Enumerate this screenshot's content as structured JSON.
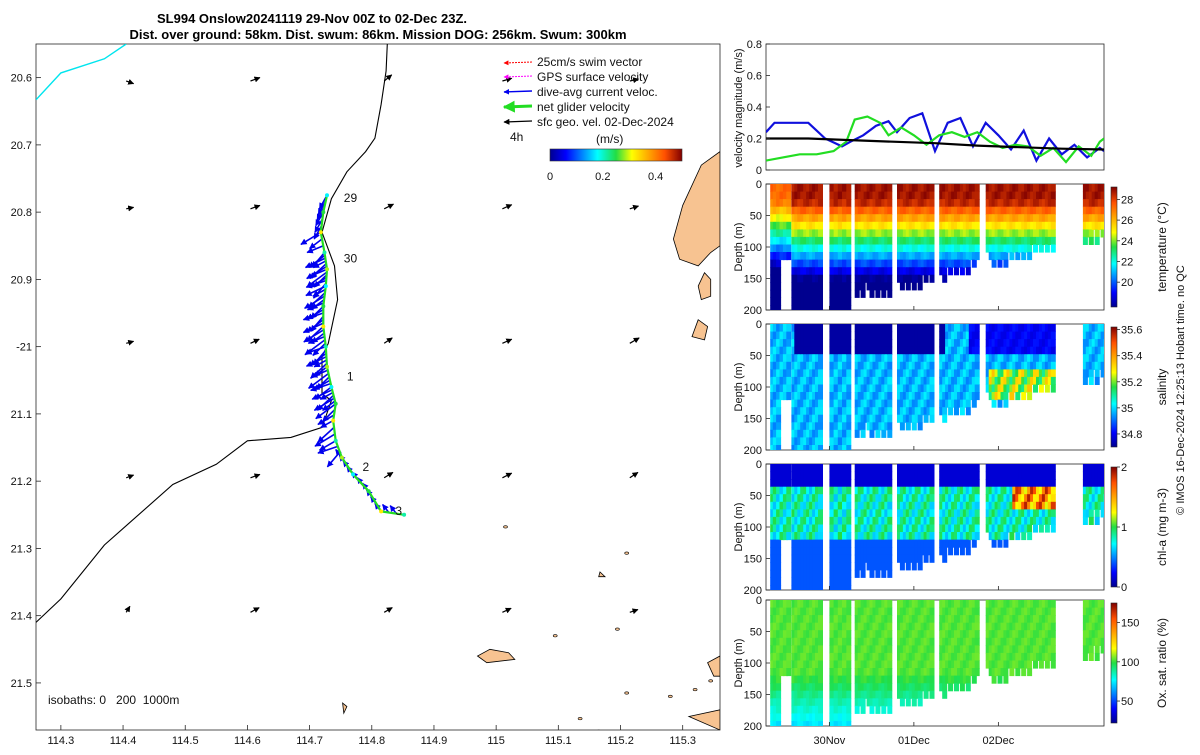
{
  "title_lines": [
    "SL994 Onslow20241119 29-Nov 00Z to 02-Dec 23Z.",
    "Dist. over ground: 58km. Dist. swum: 86km. Mission DOG: 256km. Swum: 300km"
  ],
  "side_note": "© IMOS 16-Dec-2024 12:25:13 Hobart time. no QC",
  "colors": {
    "coast": "#000000",
    "land": "#f7c391",
    "cyan": "#00e5ee",
    "swim": "#ff0000",
    "gps": "#ff00ff",
    "dive": "#0000ee",
    "net": "#22dd22",
    "sfc": "#000000",
    "vel_blue": "#1010dd",
    "vel_green": "#22dd22",
    "vel_black": "#000000"
  },
  "chart_data": [
    {
      "type": "map",
      "name": "glider-track-map",
      "xlim": [
        114.26,
        115.36
      ],
      "ylim": [
        -21.57,
        -20.55
      ],
      "xticks": [
        114.3,
        114.4,
        114.5,
        114.6,
        114.7,
        114.8,
        114.9,
        115,
        115.1,
        115.2,
        115.3
      ],
      "xtick_labels": [
        "114.3",
        "114.4",
        "114.5",
        "114.6",
        "114.7",
        "114.8",
        "114.9",
        "115",
        "115.1",
        "115.2",
        "115.3"
      ],
      "yticks": [
        -20.6,
        -20.7,
        -20.8,
        -20.9,
        -21,
        -21.1,
        -21.2,
        -21.3,
        -21.4,
        -21.5
      ],
      "ytick_labels": [
        "20.6",
        "20.7",
        "20.8",
        "20.9",
        "-21",
        "21.1",
        "21.2",
        "21.3",
        "21.4",
        "21.5"
      ],
      "legend": {
        "items": [
          {
            "label": "25cm/s swim vector",
            "color_key": "swim"
          },
          {
            "label": "GPS surface velocity",
            "color_key": "gps"
          },
          {
            "label": "dive-avg current veloc.",
            "color_key": "dive"
          },
          {
            "label": "net glider velocity",
            "color_key": "net"
          },
          {
            "label": "sfc geo. vel. 02-Dec-2024",
            "color_key": "sfc"
          }
        ],
        "time_label": "4h",
        "colorbar_title": "(m/s)",
        "colorbar_range": [
          0,
          0.5
        ],
        "colorbar_ticks": [
          0,
          0.2,
          0.4
        ],
        "colorbar_tick_labels": [
          "0",
          "0.2",
          "0.4"
        ]
      },
      "isobaths_label": "isobaths: 0   200  1000m",
      "day_labels": [
        {
          "text": "29",
          "lon": 114.755,
          "lat": -20.785
        },
        {
          "text": "30",
          "lon": 114.755,
          "lat": -20.875
        },
        {
          "text": "1",
          "lon": 114.76,
          "lat": -21.05
        },
        {
          "text": "2",
          "lon": 114.785,
          "lat": -21.185
        },
        {
          "text": "3",
          "lon": 114.838,
          "lat": -21.25
        }
      ],
      "coastline": [
        [
          114.26,
          -21.41
        ],
        [
          114.3,
          -21.375
        ],
        [
          114.37,
          -21.295
        ],
        [
          114.48,
          -21.205
        ],
        [
          114.55,
          -21.175
        ],
        [
          114.6,
          -21.14
        ],
        [
          114.67,
          -21.135
        ],
        [
          114.72,
          -21.12
        ],
        [
          114.735,
          -21.08
        ],
        [
          114.72,
          -21.07
        ],
        [
          114.72,
          -21.015
        ],
        [
          114.73,
          -20.995
        ],
        [
          114.745,
          -20.93
        ],
        [
          114.74,
          -20.88
        ],
        [
          114.72,
          -20.83
        ],
        [
          114.735,
          -20.78
        ],
        [
          114.76,
          -20.74
        ],
        [
          114.79,
          -20.71
        ],
        [
          114.805,
          -20.69
        ],
        [
          114.815,
          -20.64
        ],
        [
          114.823,
          -20.59
        ],
        [
          114.825,
          -20.55
        ]
      ],
      "cyan_contour": [
        [
          114.26,
          -20.633
        ],
        [
          114.3,
          -20.593
        ],
        [
          114.37,
          -20.572
        ],
        [
          114.405,
          -20.55
        ]
      ],
      "track": [
        [
          114.728,
          -20.775
        ],
        [
          114.722,
          -20.8
        ],
        [
          114.718,
          -20.83
        ],
        [
          114.724,
          -20.86
        ],
        [
          114.728,
          -20.885
        ],
        [
          114.726,
          -20.91
        ],
        [
          114.722,
          -20.94
        ],
        [
          114.722,
          -20.97
        ],
        [
          114.726,
          -21.0
        ],
        [
          114.728,
          -21.03
        ],
        [
          114.735,
          -21.06
        ],
        [
          114.742,
          -21.085
        ],
        [
          114.738,
          -21.11
        ],
        [
          114.742,
          -21.14
        ],
        [
          114.752,
          -21.165
        ],
        [
          114.77,
          -21.19
        ],
        [
          114.795,
          -21.215
        ],
        [
          114.815,
          -21.245
        ],
        [
          114.852,
          -21.25
        ]
      ],
      "surface_velocity_grid": {
        "lons": [
          114.405,
          114.605,
          114.82,
          115.01,
          115.215
        ],
        "lats": [
          -20.605,
          -20.795,
          -20.995,
          -21.195,
          -21.395
        ],
        "vectors": [
          [
            [
              0.012,
              -0.004
            ],
            [
              0.015,
              0.005
            ],
            [
              0.012,
              0.009
            ],
            [
              0.015,
              0.004
            ],
            [
              0.014,
              0.003
            ]
          ],
          [
            [
              0.012,
              0.002
            ],
            [
              0.015,
              0.005
            ],
            [
              0.015,
              0.007
            ],
            [
              0.015,
              0.006
            ],
            [
              0.014,
              0.004
            ]
          ],
          [
            [
              0.012,
              0.003
            ],
            [
              0.014,
              0.006
            ],
            [
              0.013,
              0.008
            ],
            [
              0.015,
              0.006
            ],
            [
              0.015,
              0.008
            ]
          ],
          [
            [
              0.012,
              0.004
            ],
            [
              0.015,
              0.005
            ],
            [
              0.014,
              0.008
            ],
            [
              0.015,
              0.007
            ],
            [
              0.013,
              0.008
            ]
          ],
          [
            [
              0.006,
              0.009
            ],
            [
              0.014,
              0.007
            ],
            [
              0.013,
              0.007
            ],
            [
              0.014,
              0.006
            ],
            [
              0.013,
              0.004
            ]
          ]
        ]
      },
      "land_polygons": [
        [
          [
            115.36,
            -20.71
          ],
          [
            115.33,
            -20.73
          ],
          [
            115.3,
            -20.79
          ],
          [
            115.285,
            -20.84
          ],
          [
            115.295,
            -20.87
          ],
          [
            115.325,
            -20.88
          ],
          [
            115.345,
            -20.86
          ],
          [
            115.36,
            -20.85
          ]
        ],
        [
          [
            115.335,
            -20.89
          ],
          [
            115.325,
            -20.91
          ],
          [
            115.33,
            -20.93
          ],
          [
            115.345,
            -20.925
          ],
          [
            115.345,
            -20.9
          ]
        ],
        [
          [
            115.325,
            -20.96
          ],
          [
            115.315,
            -20.985
          ],
          [
            115.335,
            -20.99
          ],
          [
            115.34,
            -20.97
          ]
        ],
        [
          [
            114.97,
            -21.46
          ],
          [
            114.985,
            -21.47
          ],
          [
            115.03,
            -21.465
          ],
          [
            115.02,
            -21.455
          ],
          [
            114.99,
            -21.45
          ]
        ],
        [
          [
            115.34,
            -21.47
          ],
          [
            115.35,
            -21.49
          ],
          [
            115.36,
            -21.49
          ],
          [
            115.36,
            -21.46
          ]
        ],
        [
          [
            115.31,
            -21.55
          ],
          [
            115.36,
            -21.57
          ],
          [
            115.36,
            -21.54
          ]
        ],
        [
          [
            114.753,
            -21.53
          ],
          [
            114.755,
            -21.545
          ],
          [
            114.76,
            -21.535
          ]
        ],
        [
          [
            115.167,
            -21.335
          ],
          [
            115.165,
            -21.342
          ],
          [
            115.175,
            -21.342
          ]
        ]
      ],
      "islets": [
        [
          115.015,
          -21.268
        ],
        [
          115.21,
          -21.307
        ],
        [
          115.095,
          -21.43
        ],
        [
          115.195,
          -21.42
        ],
        [
          115.21,
          -21.515
        ],
        [
          115.135,
          -21.553
        ],
        [
          115.165,
          -21.572
        ],
        [
          115.28,
          -21.52
        ],
        [
          115.32,
          -21.51
        ],
        [
          115.345,
          -21.497
        ]
      ]
    },
    {
      "type": "line",
      "name": "velocity-magnitude",
      "ylabel": "velocity magnitude (m/s)",
      "ylim": [
        0,
        0.8
      ],
      "yticks": [
        0,
        0.2,
        0.4,
        0.6,
        0.8
      ],
      "ytick_labels": [
        "0",
        "0.2",
        "0.4",
        "0.6",
        "0.8"
      ],
      "xlim": [
        0,
        4
      ],
      "series": [
        {
          "name": "dive-avg current",
          "color_key": "vel_blue",
          "x": [
            0,
            0.1,
            0.25,
            0.5,
            0.7,
            0.9,
            1.0,
            1.15,
            1.3,
            1.45,
            1.55,
            1.7,
            1.85,
            2.0,
            2.15,
            2.3,
            2.45,
            2.6,
            2.75,
            2.9,
            3.05,
            3.2,
            3.35,
            3.5,
            3.65,
            3.8,
            3.95,
            4.0
          ],
          "values": [
            0.24,
            0.3,
            0.3,
            0.3,
            0.2,
            0.15,
            0.18,
            0.22,
            0.28,
            0.31,
            0.24,
            0.33,
            0.36,
            0.12,
            0.3,
            0.33,
            0.15,
            0.3,
            0.22,
            0.13,
            0.25,
            0.06,
            0.2,
            0.1,
            0.16,
            0.08,
            0.14,
            0.12
          ]
        },
        {
          "name": "net glider velocity",
          "color_key": "vel_green",
          "x": [
            0,
            0.2,
            0.4,
            0.6,
            0.8,
            0.95,
            1.05,
            1.2,
            1.35,
            1.45,
            1.6,
            1.75,
            1.9,
            2.05,
            2.2,
            2.35,
            2.5,
            2.65,
            2.8,
            2.95,
            3.1,
            3.25,
            3.4,
            3.55,
            3.7,
            3.85,
            3.95,
            4.0
          ],
          "values": [
            0.06,
            0.08,
            0.1,
            0.1,
            0.12,
            0.18,
            0.32,
            0.34,
            0.3,
            0.22,
            0.27,
            0.22,
            0.16,
            0.22,
            0.24,
            0.21,
            0.24,
            0.18,
            0.14,
            0.16,
            0.15,
            0.09,
            0.14,
            0.05,
            0.15,
            0.09,
            0.18,
            0.2
          ]
        },
        {
          "name": "sfc geo. vel.",
          "color_key": "vel_black",
          "x": [
            0,
            0.5,
            1.0,
            1.5,
            2.0,
            2.5,
            3.0,
            3.5,
            4.0
          ],
          "values": [
            0.2,
            0.2,
            0.19,
            0.18,
            0.17,
            0.155,
            0.145,
            0.135,
            0.13
          ]
        }
      ]
    },
    {
      "type": "heatmap",
      "name": "temperature-section",
      "ylabel": "Depth (m)",
      "colorbar_label": "temperature (°C)",
      "ylim": [
        0,
        200
      ],
      "yticks": [
        0,
        50,
        100,
        150,
        200
      ],
      "ytick_labels": [
        "0",
        "50",
        "100",
        "150",
        "200"
      ],
      "colorbar_range": [
        17.6,
        29.2
      ],
      "colorbar_ticks": [
        20,
        22,
        24,
        26,
        28
      ],
      "colorbar_tick_labels": [
        "20",
        "22",
        "24",
        "26",
        "28"
      ]
    },
    {
      "type": "heatmap",
      "name": "salinity-section",
      "ylabel": "Depth (m)",
      "colorbar_label": "salinity",
      "ylim": [
        0,
        200
      ],
      "yticks": [
        0,
        50,
        100,
        150,
        200
      ],
      "ytick_labels": [
        "0",
        "50",
        "100",
        "150",
        "200"
      ],
      "colorbar_range": [
        34.7,
        35.62
      ],
      "colorbar_ticks": [
        34.8,
        35,
        35.2,
        35.4,
        35.6
      ],
      "colorbar_tick_labels": [
        "34.8",
        "35",
        "35.2",
        "35.4",
        "35.6"
      ]
    },
    {
      "type": "heatmap",
      "name": "chl-a-section",
      "ylabel": "Depth (m)",
      "colorbar_label": "chl-a (mg m-3)",
      "ylim": [
        0,
        200
      ],
      "yticks": [
        0,
        50,
        100,
        150,
        200
      ],
      "ytick_labels": [
        "0",
        "50",
        "100",
        "150",
        "200"
      ],
      "colorbar_range": [
        0,
        2
      ],
      "colorbar_ticks": [
        0,
        1,
        2
      ],
      "colorbar_tick_labels": [
        "0",
        "1",
        "2"
      ]
    },
    {
      "type": "heatmap",
      "name": "oxygen-section",
      "ylabel": "Depth (m)",
      "colorbar_label": "Ox. sat. ratio (%)",
      "ylim": [
        0,
        200
      ],
      "yticks": [
        0,
        50,
        100,
        150,
        200
      ],
      "ytick_labels": [
        "0",
        "50",
        "100",
        "150",
        "200"
      ],
      "colorbar_range": [
        22,
        175
      ],
      "colorbar_ticks": [
        50,
        100,
        150
      ],
      "colorbar_tick_labels": [
        "50",
        "100",
        "150"
      ],
      "xticks": [
        0.75,
        1.75,
        2.75
      ],
      "xtick_labels": [
        "30Nov",
        "01Dec",
        "02Dec"
      ]
    }
  ]
}
